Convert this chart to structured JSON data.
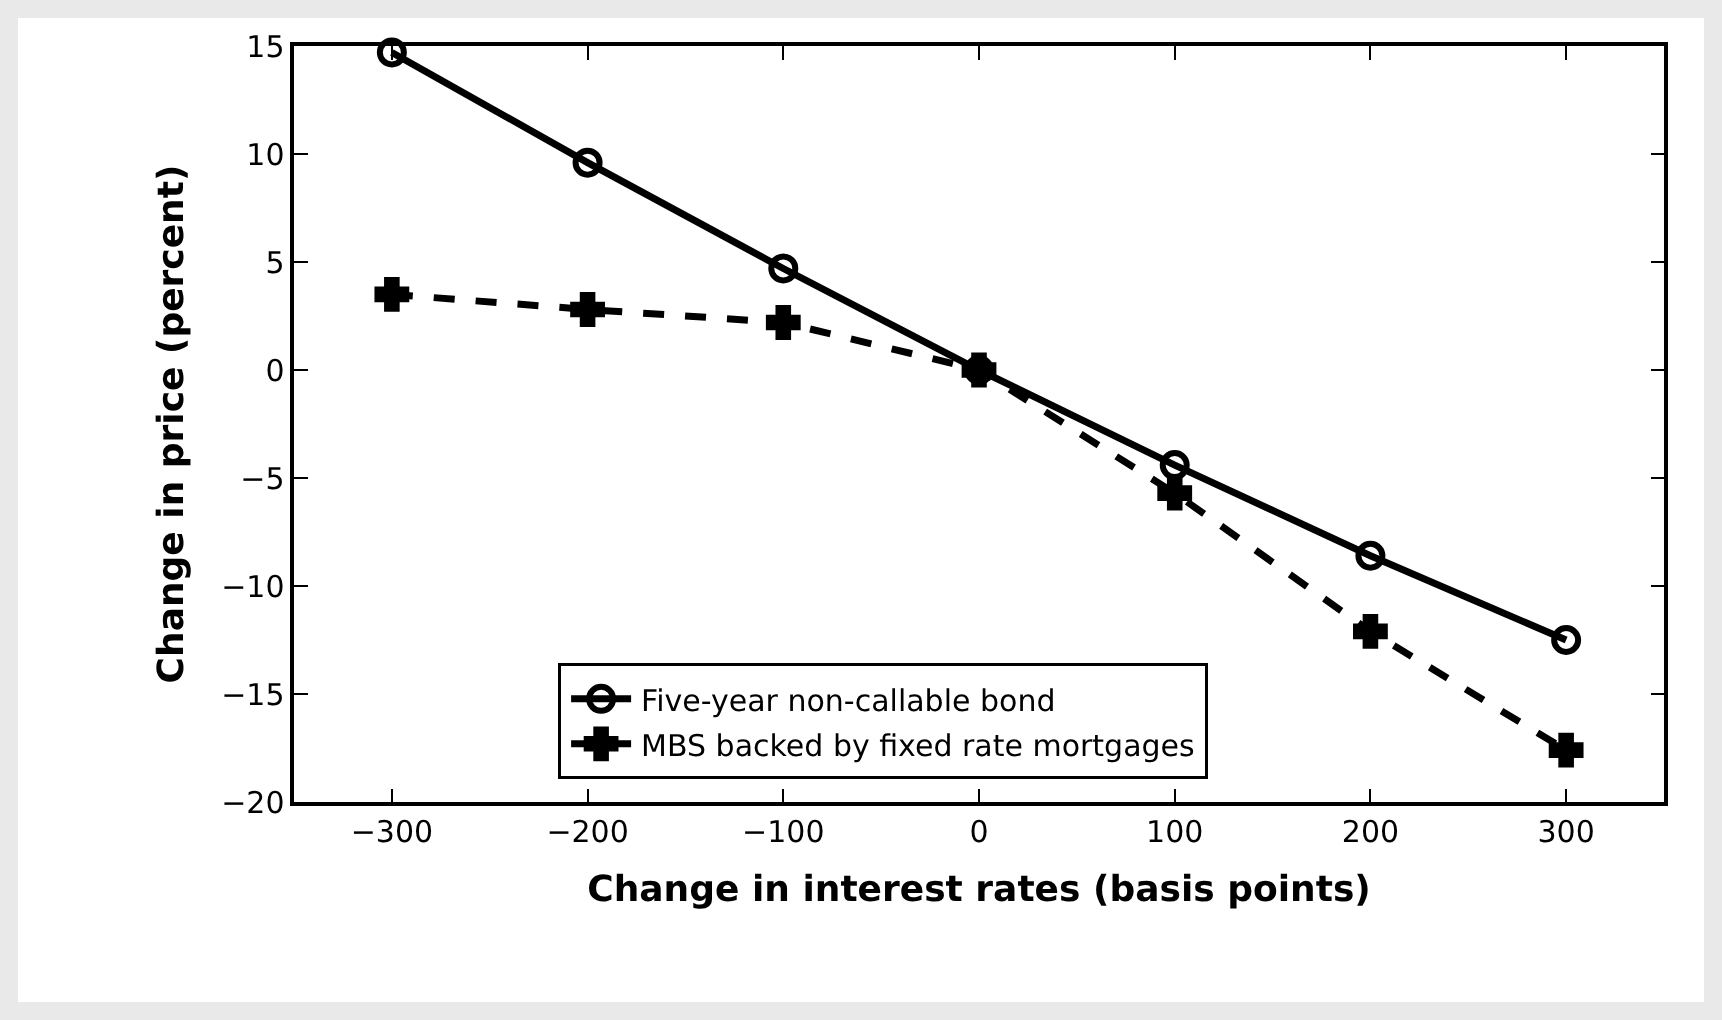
{
  "chart_data": {
    "type": "line",
    "xlabel": "Change in interest rates (basis points)",
    "ylabel": "Change in price (percent)",
    "x": [
      -300,
      -200,
      -100,
      0,
      100,
      200,
      300
    ],
    "series": [
      {
        "name": "Five-year non-callable bond",
        "color": "#000000",
        "values": [
          14.7,
          9.6,
          4.7,
          0,
          -4.4,
          -8.6,
          -12.5
        ],
        "marker": "circle",
        "line_style": "solid"
      },
      {
        "name": "MBS backed by fixed rate mortgages",
        "color": "#000000",
        "values": [
          3.5,
          2.8,
          2.2,
          0,
          -5.7,
          -12.1,
          -17.6
        ],
        "marker": "cross",
        "line_style": "dashed"
      }
    ],
    "xlim": [
      -350,
      350
    ],
    "xticks": [
      -300,
      -200,
      -100,
      0,
      100,
      200,
      300
    ],
    "ylim": [
      -20,
      15
    ],
    "yticks": [
      -20,
      -15,
      -10,
      -5,
      0,
      5,
      10,
      15
    ],
    "grid": false,
    "legend": "bottom"
  }
}
